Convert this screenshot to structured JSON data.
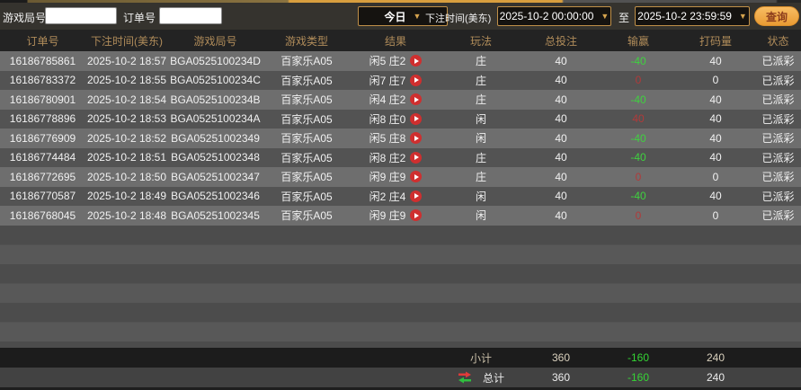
{
  "toolbar": {
    "game_round_label": "游戏局号",
    "game_round_value": "",
    "order_label": "订单号",
    "order_value": "",
    "date_preset": "今日",
    "bet_time_label": "下注时间(美东)",
    "time_from": "2025-10-2 00:00:00",
    "to_label": "至",
    "time_to": "2025-10-2 23:59:59",
    "search_label": "查询"
  },
  "icons": {
    "dropdown_arrow": "▼",
    "replay": "play-circle",
    "total_swap": "red-green-swap-arrows"
  },
  "colors": {
    "accent_gold": "#c09048",
    "button_orange": "#e99b33",
    "header_text_gold": "#b08c5a",
    "loss_green": "#3fd23f",
    "win_red": "#b13a3a",
    "row_light": "#6e6e6e",
    "row_dark": "#535353"
  },
  "table": {
    "columns": [
      "订单号",
      "下注时间(美东)",
      "游戏局号",
      "游戏类型",
      "结果",
      "玩法",
      "总投注",
      "输赢",
      "打码量",
      "状态"
    ],
    "rows": [
      {
        "order_no": "16186785861",
        "bet_time": "2025-10-2 18:57",
        "round_no": "BGA0525100234D",
        "game_type": "百家乐A05",
        "result": "闲5 庄2",
        "play": "庄",
        "total_bet": "40",
        "win_loss": "-40",
        "win_loss_color": "green",
        "turnover": "40",
        "status": "已派彩"
      },
      {
        "order_no": "16186783372",
        "bet_time": "2025-10-2 18:55",
        "round_no": "BGA0525100234C",
        "game_type": "百家乐A05",
        "result": "闲7 庄7",
        "play": "庄",
        "total_bet": "40",
        "win_loss": "0",
        "win_loss_color": "red",
        "turnover": "0",
        "status": "已派彩"
      },
      {
        "order_no": "16186780901",
        "bet_time": "2025-10-2 18:54",
        "round_no": "BGA0525100234B",
        "game_type": "百家乐A05",
        "result": "闲4 庄2",
        "play": "庄",
        "total_bet": "40",
        "win_loss": "-40",
        "win_loss_color": "green",
        "turnover": "40",
        "status": "已派彩"
      },
      {
        "order_no": "16186778896",
        "bet_time": "2025-10-2 18:53",
        "round_no": "BGA0525100234A",
        "game_type": "百家乐A05",
        "result": "闲8 庄0",
        "play": "闲",
        "total_bet": "40",
        "win_loss": "40",
        "win_loss_color": "red",
        "turnover": "40",
        "status": "已派彩"
      },
      {
        "order_no": "16186776909",
        "bet_time": "2025-10-2 18:52",
        "round_no": "BGA05251002349",
        "game_type": "百家乐A05",
        "result": "闲5 庄8",
        "play": "闲",
        "total_bet": "40",
        "win_loss": "-40",
        "win_loss_color": "green",
        "turnover": "40",
        "status": "已派彩"
      },
      {
        "order_no": "16186774484",
        "bet_time": "2025-10-2 18:51",
        "round_no": "BGA05251002348",
        "game_type": "百家乐A05",
        "result": "闲8 庄2",
        "play": "庄",
        "total_bet": "40",
        "win_loss": "-40",
        "win_loss_color": "green",
        "turnover": "40",
        "status": "已派彩"
      },
      {
        "order_no": "16186772695",
        "bet_time": "2025-10-2 18:50",
        "round_no": "BGA05251002347",
        "game_type": "百家乐A05",
        "result": "闲9 庄9",
        "play": "庄",
        "total_bet": "40",
        "win_loss": "0",
        "win_loss_color": "red",
        "turnover": "0",
        "status": "已派彩"
      },
      {
        "order_no": "16186770587",
        "bet_time": "2025-10-2 18:49",
        "round_no": "BGA05251002346",
        "game_type": "百家乐A05",
        "result": "闲2 庄4",
        "play": "闲",
        "total_bet": "40",
        "win_loss": "-40",
        "win_loss_color": "green",
        "turnover": "40",
        "status": "已派彩"
      },
      {
        "order_no": "16186768045",
        "bet_time": "2025-10-2 18:48",
        "round_no": "BGA05251002345",
        "game_type": "百家乐A05",
        "result": "闲9 庄9",
        "play": "闲",
        "total_bet": "40",
        "win_loss": "0",
        "win_loss_color": "red",
        "turnover": "0",
        "status": "已派彩"
      }
    ],
    "subtotal": {
      "label": "小计",
      "total_bet": "360",
      "win_loss": "-160",
      "turnover": "240"
    },
    "grand_total": {
      "label": "总计",
      "total_bet": "360",
      "win_loss": "-160",
      "turnover": "240"
    }
  }
}
